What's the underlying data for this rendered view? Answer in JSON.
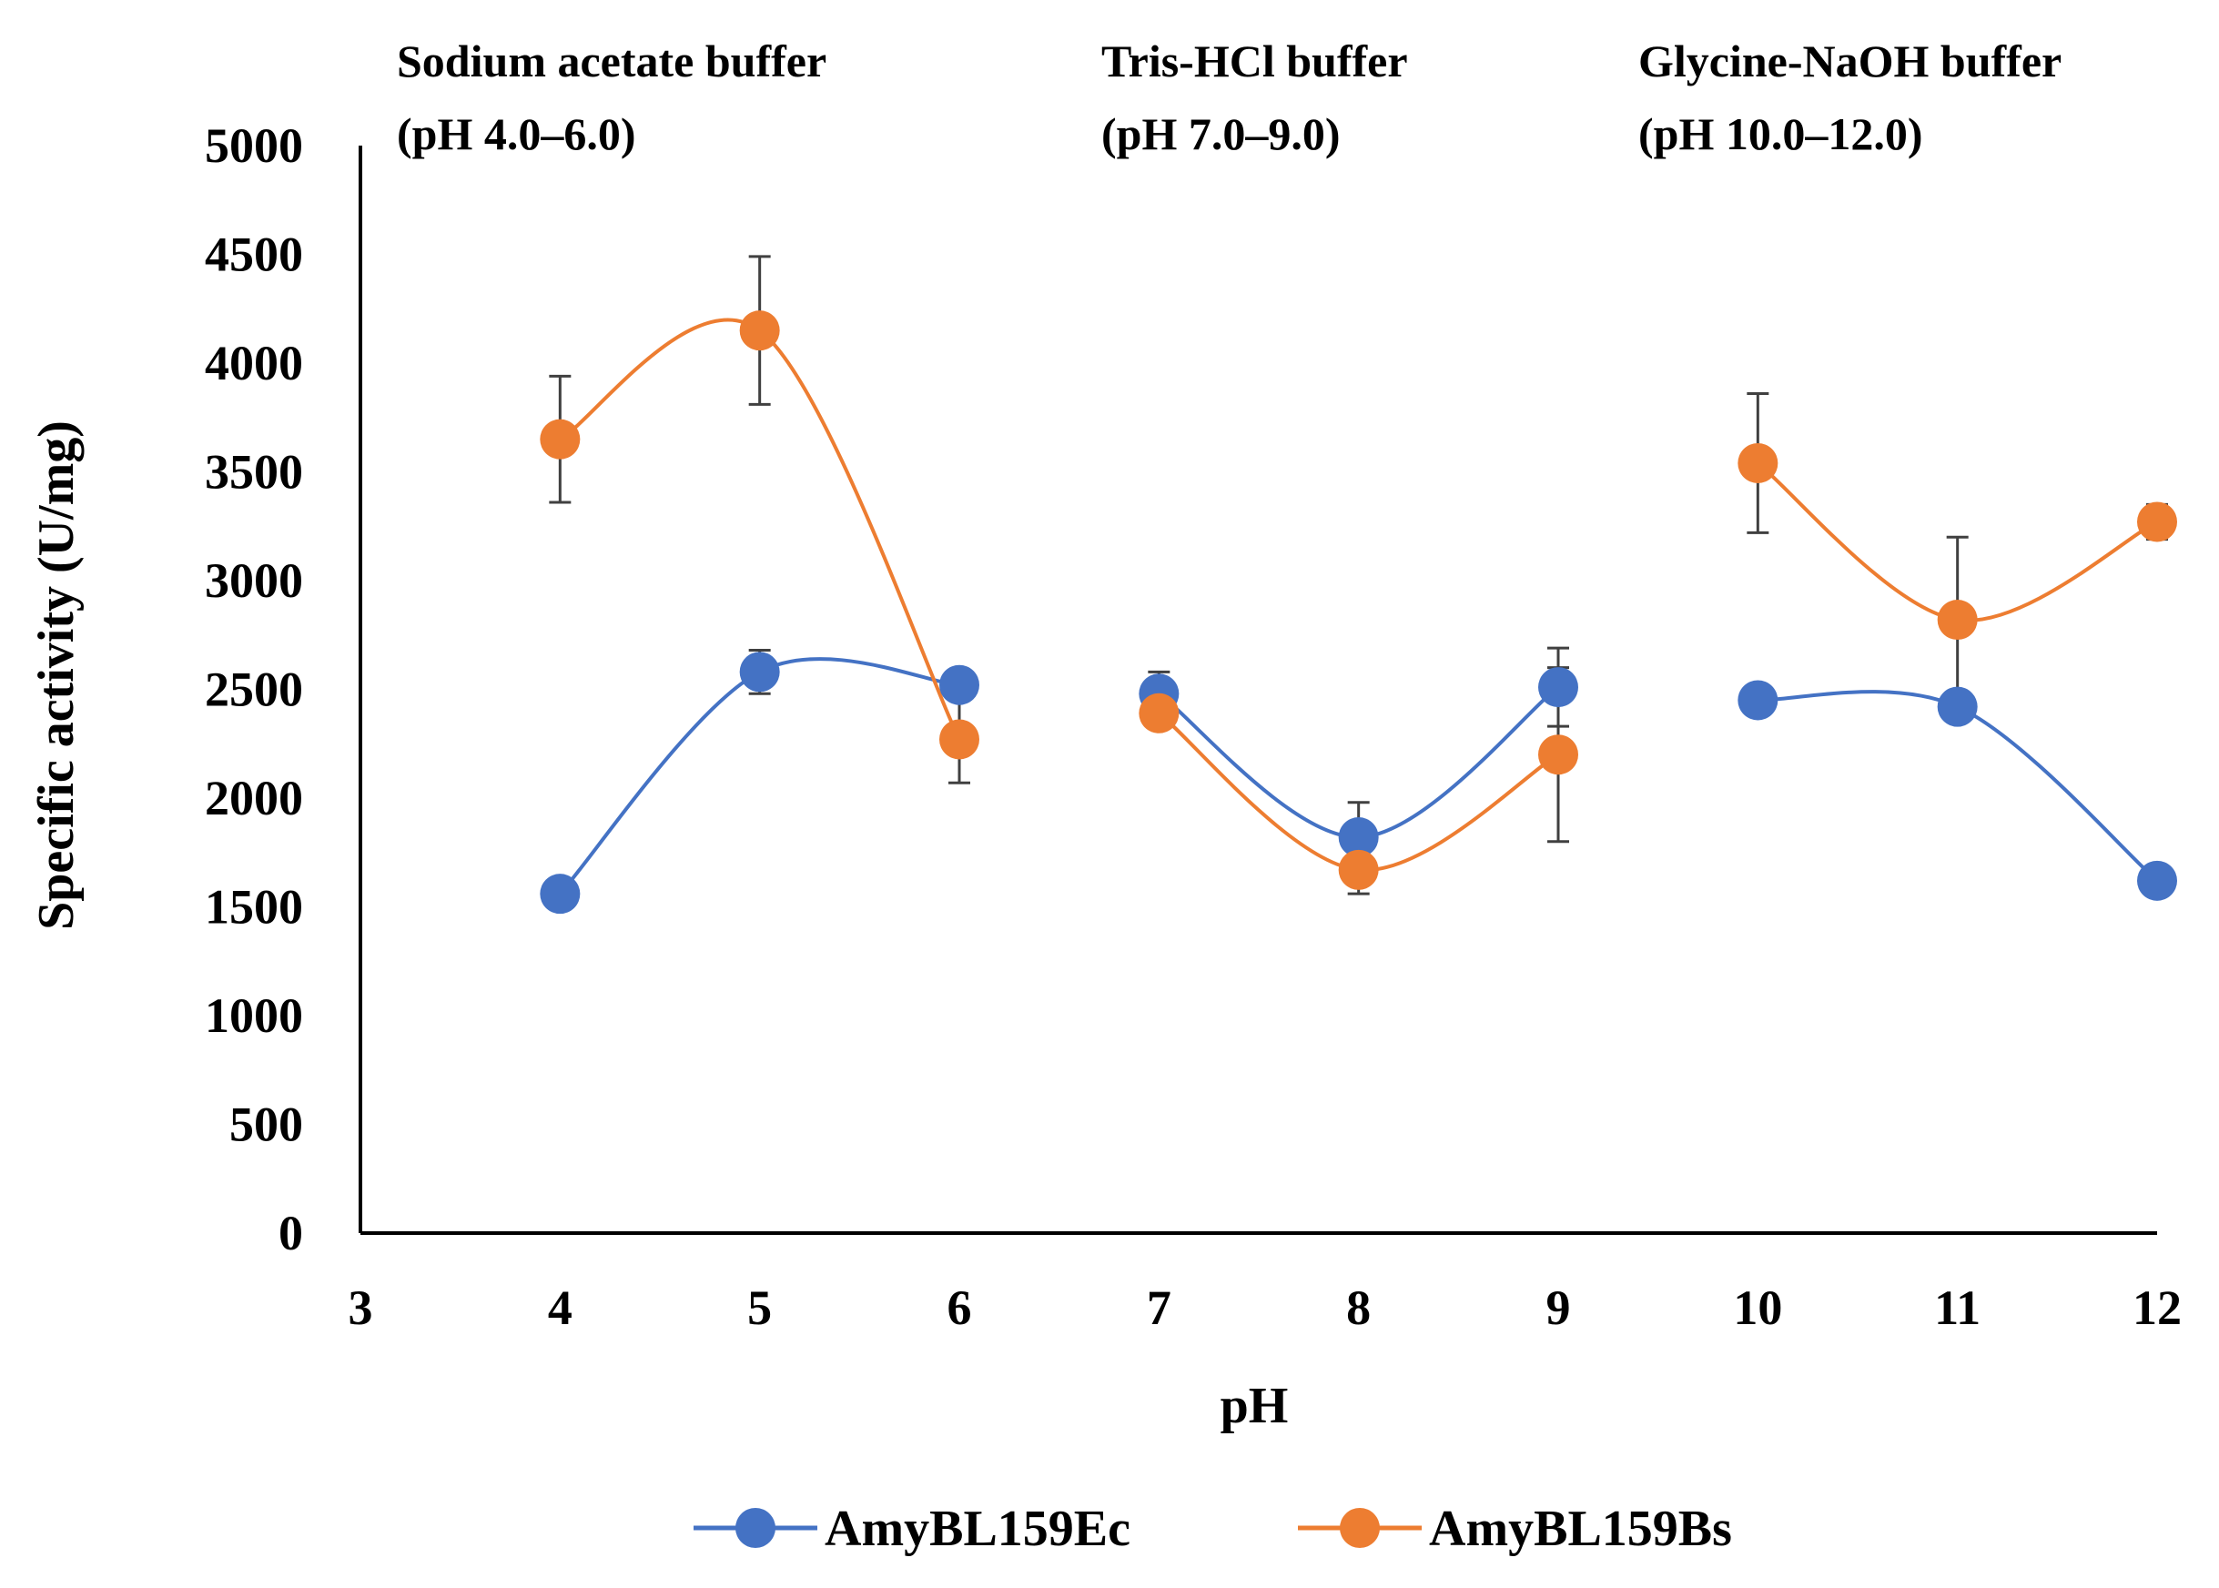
{
  "chart_data": {
    "type": "line",
    "title": "",
    "xlabel": "pH",
    "ylabel": "Specific activity (U/mg)",
    "xlim": [
      3,
      12
    ],
    "ylim": [
      0,
      5000
    ],
    "xticks": [
      3,
      4,
      5,
      6,
      7,
      8,
      9,
      10,
      11,
      12
    ],
    "yticks": [
      0,
      500,
      1000,
      1500,
      2000,
      2500,
      3000,
      3500,
      4000,
      4500,
      5000
    ],
    "grid": false,
    "legend_position": "bottom",
    "buffer_labels": [
      {
        "line1": "Sodium acetate  buffer",
        "line2": "(pH 4.0–6.0)"
      },
      {
        "line1": "Tris-HCl  buffer",
        "line2": "(pH 7.0–9.0)"
      },
      {
        "line1": "Glycine-NaOH buffer",
        "line2": " (pH 10.0–12.0)"
      }
    ],
    "segments": [
      [
        4,
        5,
        6
      ],
      [
        7,
        8,
        9
      ],
      [
        10,
        11,
        12
      ]
    ],
    "series": [
      {
        "name": "AmyBL159Ec",
        "color": "#4472C4",
        "points": [
          {
            "x": 4,
            "y": 1560,
            "err": 0
          },
          {
            "x": 5,
            "y": 2580,
            "err": 100
          },
          {
            "x": 6,
            "y": 2520,
            "err": 0
          },
          {
            "x": 7,
            "y": 2480,
            "err": 100
          },
          {
            "x": 8,
            "y": 1820,
            "err": 160
          },
          {
            "x": 9,
            "y": 2510,
            "err": 180
          },
          {
            "x": 10,
            "y": 2450,
            "err": 70
          },
          {
            "x": 11,
            "y": 2420,
            "err": 0
          },
          {
            "x": 12,
            "y": 1620,
            "err": 0
          }
        ]
      },
      {
        "name": "AmyBL159Bs",
        "color": "#ED7D31",
        "points": [
          {
            "x": 4,
            "y": 3650,
            "err": 290
          },
          {
            "x": 5,
            "y": 4150,
            "err": 340
          },
          {
            "x": 6,
            "y": 2270,
            "err": 200
          },
          {
            "x": 7,
            "y": 2390,
            "err": 0
          },
          {
            "x": 8,
            "y": 1670,
            "err": 110
          },
          {
            "x": 9,
            "y": 2200,
            "err": 400
          },
          {
            "x": 10,
            "y": 3540,
            "err": 320
          },
          {
            "x": 11,
            "y": 2820,
            "err": 380
          },
          {
            "x": 12,
            "y": 3270,
            "err": 80
          }
        ]
      }
    ]
  }
}
